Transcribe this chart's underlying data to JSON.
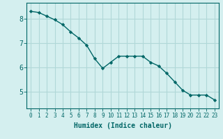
{
  "x": [
    0,
    1,
    2,
    3,
    4,
    5,
    6,
    7,
    8,
    9,
    10,
    11,
    12,
    13,
    14,
    15,
    16,
    17,
    18,
    19,
    20,
    21,
    22,
    23
  ],
  "y": [
    8.3,
    8.25,
    8.1,
    7.95,
    7.75,
    7.45,
    7.2,
    6.9,
    6.35,
    5.95,
    6.2,
    6.45,
    6.45,
    6.45,
    6.45,
    6.2,
    6.05,
    5.75,
    5.4,
    5.05,
    4.85,
    4.85,
    4.85,
    4.65
  ],
  "line_color": "#006666",
  "marker": "D",
  "marker_size": 2.2,
  "bg_color": "#d4efef",
  "grid_color": "#b0d8d8",
  "tick_color": "#006666",
  "label_color": "#006666",
  "xlabel": "Humidex (Indice chaleur)",
  "yticks": [
    5,
    6,
    7,
    8
  ],
  "xlim": [
    -0.5,
    23.5
  ],
  "ylim": [
    4.3,
    8.65
  ]
}
